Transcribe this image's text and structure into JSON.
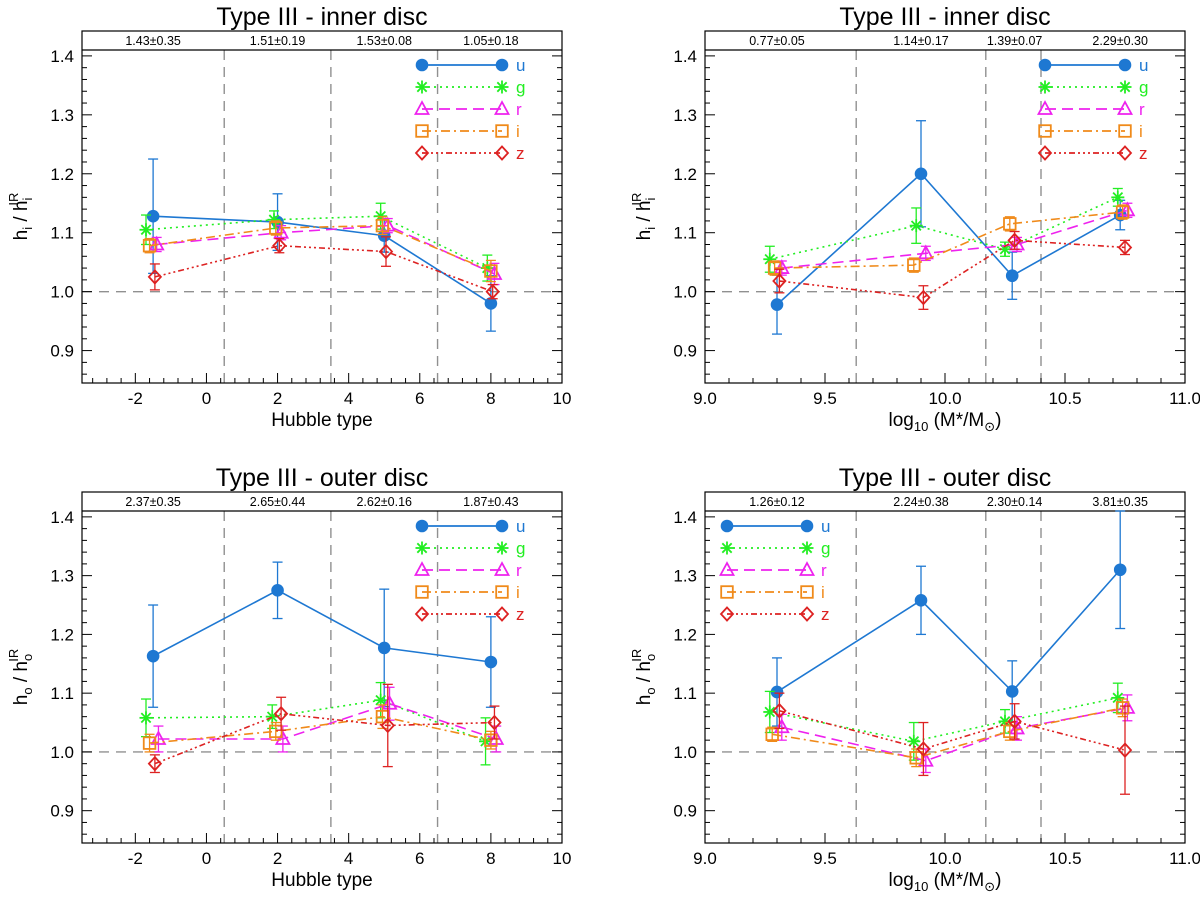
{
  "figure": {
    "description_free": true
  },
  "bands": [
    "u",
    "g",
    "r",
    "i",
    "z"
  ],
  "colors": {
    "u": "#1e78d2",
    "g": "#22ee22",
    "r": "#ee22ee",
    "i": "#f08a1a",
    "z": "#dd2222",
    "axis": "#000000",
    "refline": "#909090"
  },
  "chart_data": [
    {
      "type": "line",
      "title": "Type III - inner disc",
      "xlabel": "Hubble type",
      "ylabel": "h_i / h_i^IR",
      "ylabel_main": "h",
      "ylabel_sub": "i",
      "ylabel_slash": " / h",
      "ylabel_sub2": "i",
      "ylabel_sup": "IR",
      "xlim": [
        -3.5,
        10
      ],
      "ylim": [
        0.845,
        1.41
      ],
      "xticks": [
        -2,
        0,
        2,
        4,
        6,
        8,
        10
      ],
      "xtick_labels": [
        "-2",
        "0",
        "2",
        "4",
        "6",
        "8",
        "10"
      ],
      "yticks": [
        0.9,
        1.0,
        1.1,
        1.2,
        1.3,
        1.4
      ],
      "ytick_labels": [
        "0.9",
        "1.0",
        "1.1",
        "1.2",
        "1.3",
        "1.4"
      ],
      "vlines": [
        0.5,
        3.5,
        6.5
      ],
      "hline": 1.0,
      "top_labels": [
        {
          "x": -1.5,
          "text": "1.43±0.35"
        },
        {
          "x": 2.0,
          "text": "1.51±0.19"
        },
        {
          "x": 5.0,
          "text": "1.53±0.08"
        },
        {
          "x": 8.0,
          "text": "1.05±0.18"
        }
      ],
      "legend_position": "top-right",
      "series": [
        {
          "name": "u",
          "x": [
            -1.5,
            2.0,
            5.0,
            8.0
          ],
          "y": [
            1.128,
            1.118,
            1.095,
            0.98
          ],
          "err": [
            0.097,
            0.048,
            0.028,
            0.047
          ]
        },
        {
          "name": "g",
          "x": [
            -1.7,
            1.9,
            4.9,
            7.9
          ],
          "y": [
            1.105,
            1.122,
            1.128,
            1.04
          ],
          "err": [
            0.025,
            0.015,
            0.022,
            0.022
          ]
        },
        {
          "name": "r",
          "x": [
            -1.4,
            2.1,
            5.1,
            8.1
          ],
          "y": [
            1.08,
            1.1,
            1.112,
            1.03
          ],
          "err": [
            0.012,
            0.012,
            0.012,
            0.018
          ]
        },
        {
          "name": "i",
          "x": [
            -1.6,
            1.95,
            4.95,
            8.0
          ],
          "y": [
            1.078,
            1.108,
            1.112,
            1.035
          ],
          "err": [
            0.012,
            0.012,
            0.015,
            0.018
          ]
        },
        {
          "name": "z",
          "x": [
            -1.45,
            2.05,
            5.05,
            8.05
          ],
          "y": [
            1.025,
            1.078,
            1.068,
            1.0
          ],
          "err": [
            0.022,
            0.012,
            0.025,
            0.012
          ]
        }
      ]
    },
    {
      "type": "line",
      "title": "Type III - inner disc",
      "xlabel": "log10 (M*/M⊙)",
      "xlabel_main": "log",
      "xlabel_sub": "10",
      "xlabel_rest": " (M*/M",
      "xlabel_sun": "⊙",
      "xlabel_end": ")",
      "ylabel": "h_i / h_i^IR",
      "ylabel_main": "h",
      "ylabel_sub": "i",
      "ylabel_slash": " / h",
      "ylabel_sub2": "i",
      "ylabel_sup": "IR",
      "xlim": [
        9.0,
        11.0
      ],
      "ylim": [
        0.845,
        1.41
      ],
      "xticks": [
        9.0,
        9.5,
        10.0,
        10.5,
        11.0
      ],
      "xtick_labels": [
        "9.0",
        "9.5",
        "10.0",
        "10.5",
        "11.0"
      ],
      "yticks": [
        0.9,
        1.0,
        1.1,
        1.2,
        1.3,
        1.4
      ],
      "ytick_labels": [
        "0.9",
        "1.0",
        "1.1",
        "1.2",
        "1.3",
        "1.4"
      ],
      "vlines": [
        9.63,
        10.17,
        10.4
      ],
      "hline": 1.0,
      "top_labels": [
        {
          "x": 9.3,
          "text": "0.77±0.05"
        },
        {
          "x": 9.9,
          "text": "1.14±0.17"
        },
        {
          "x": 10.29,
          "text": "1.39±0.07"
        },
        {
          "x": 10.73,
          "text": "2.29±0.30"
        }
      ],
      "legend_position": "top-right",
      "series": [
        {
          "name": "u",
          "x": [
            9.3,
            9.9,
            10.28,
            10.73
          ],
          "y": [
            0.978,
            1.2,
            1.027,
            1.13
          ],
          "err": [
            0.05,
            0.09,
            0.04,
            0.025
          ]
        },
        {
          "name": "g",
          "x": [
            9.27,
            9.88,
            10.25,
            10.72
          ],
          "y": [
            1.055,
            1.112,
            1.072,
            1.16
          ],
          "err": [
            0.022,
            0.03,
            0.012,
            0.015
          ]
        },
        {
          "name": "r",
          "x": [
            9.32,
            9.92,
            10.3,
            10.76
          ],
          "y": [
            1.04,
            1.065,
            1.08,
            1.138
          ],
          "err": [
            0.012,
            0.012,
            0.012,
            0.012
          ]
        },
        {
          "name": "i",
          "x": [
            9.29,
            9.87,
            10.27,
            10.74
          ],
          "y": [
            1.04,
            1.045,
            1.115,
            1.135
          ],
          "err": [
            0.012,
            0.012,
            0.012,
            0.012
          ]
        },
        {
          "name": "z",
          "x": [
            9.31,
            9.91,
            10.29,
            10.75
          ],
          "y": [
            1.018,
            0.99,
            1.087,
            1.075
          ],
          "err": [
            0.02,
            0.02,
            0.015,
            0.012
          ]
        }
      ]
    },
    {
      "type": "line",
      "title": "Type III - outer disc",
      "xlabel": "Hubble type",
      "ylabel": "h_o / h_o^IR",
      "ylabel_main": "h",
      "ylabel_sub": "o",
      "ylabel_slash": " / h",
      "ylabel_sub2": "o",
      "ylabel_sup": "IR",
      "xlim": [
        -3.5,
        10
      ],
      "ylim": [
        0.845,
        1.41
      ],
      "xticks": [
        -2,
        0,
        2,
        4,
        6,
        8,
        10
      ],
      "xtick_labels": [
        "-2",
        "0",
        "2",
        "4",
        "6",
        "8",
        "10"
      ],
      "yticks": [
        0.9,
        1.0,
        1.1,
        1.2,
        1.3,
        1.4
      ],
      "ytick_labels": [
        "0.9",
        "1.0",
        "1.1",
        "1.2",
        "1.3",
        "1.4"
      ],
      "vlines": [
        0.5,
        3.5,
        6.5
      ],
      "hline": 1.0,
      "top_labels": [
        {
          "x": -1.5,
          "text": "2.37±0.35"
        },
        {
          "x": 2.0,
          "text": "2.65±0.44"
        },
        {
          "x": 5.0,
          "text": "2.62±0.16"
        },
        {
          "x": 8.0,
          "text": "1.87±0.43"
        }
      ],
      "legend_position": "top-right",
      "series": [
        {
          "name": "u",
          "x": [
            -1.5,
            2.0,
            5.0,
            8.0
          ],
          "y": [
            1.163,
            1.275,
            1.177,
            1.153
          ],
          "err": [
            0.087,
            0.048,
            0.1,
            0.077
          ]
        },
        {
          "name": "g",
          "x": [
            -1.7,
            1.85,
            4.9,
            7.85
          ],
          "y": [
            1.058,
            1.06,
            1.088,
            1.018
          ],
          "err": [
            0.032,
            0.02,
            0.03,
            0.04
          ]
        },
        {
          "name": "r",
          "x": [
            -1.35,
            2.15,
            5.15,
            8.15
          ],
          "y": [
            1.022,
            1.022,
            1.082,
            1.022
          ],
          "err": [
            0.022,
            0.022,
            0.028,
            0.022
          ]
        },
        {
          "name": "i",
          "x": [
            -1.6,
            1.95,
            4.95,
            8.0
          ],
          "y": [
            1.015,
            1.035,
            1.06,
            1.02
          ],
          "err": [
            0.015,
            0.015,
            0.02,
            0.015
          ]
        },
        {
          "name": "z",
          "x": [
            -1.45,
            2.1,
            5.1,
            8.1
          ],
          "y": [
            0.98,
            1.065,
            1.045,
            1.05
          ],
          "err": [
            0.015,
            0.028,
            0.07,
            0.028
          ]
        }
      ]
    },
    {
      "type": "line",
      "title": "Type III - outer disc",
      "xlabel": "log10 (M*/M⊙)",
      "xlabel_main": "log",
      "xlabel_sub": "10",
      "xlabel_rest": " (M*/M",
      "xlabel_sun": "⊙",
      "xlabel_end": ")",
      "ylabel": "h_o / h_o^IR",
      "ylabel_main": "h",
      "ylabel_sub": "o",
      "ylabel_slash": " / h",
      "ylabel_sub2": "o",
      "ylabel_sup": "IR",
      "xlim": [
        9.0,
        11.0
      ],
      "ylim": [
        0.845,
        1.41
      ],
      "xticks": [
        9.0,
        9.5,
        10.0,
        10.5,
        11.0
      ],
      "xtick_labels": [
        "9.0",
        "9.5",
        "10.0",
        "10.5",
        "11.0"
      ],
      "yticks": [
        0.9,
        1.0,
        1.1,
        1.2,
        1.3,
        1.4
      ],
      "ytick_labels": [
        "0.9",
        "1.0",
        "1.1",
        "1.2",
        "1.3",
        "1.4"
      ],
      "vlines": [
        9.63,
        10.17,
        10.4
      ],
      "hline": 1.0,
      "top_labels": [
        {
          "x": 9.3,
          "text": "1.26±0.12"
        },
        {
          "x": 9.9,
          "text": "2.24±0.38"
        },
        {
          "x": 10.29,
          "text": "2.30±0.14"
        },
        {
          "x": 10.73,
          "text": "3.81±0.35"
        }
      ],
      "legend_position": "top-left",
      "series": [
        {
          "name": "u",
          "x": [
            9.3,
            9.9,
            10.28,
            10.73
          ],
          "y": [
            1.102,
            1.258,
            1.103,
            1.31
          ],
          "err": [
            0.058,
            0.058,
            0.052,
            0.1
          ]
        },
        {
          "name": "g",
          "x": [
            9.27,
            9.87,
            10.25,
            10.72
          ],
          "y": [
            1.068,
            1.018,
            1.052,
            1.092
          ],
          "err": [
            0.035,
            0.032,
            0.02,
            0.025
          ]
        },
        {
          "name": "r",
          "x": [
            9.32,
            9.92,
            10.3,
            10.76
          ],
          "y": [
            1.042,
            0.985,
            1.04,
            1.075
          ],
          "err": [
            0.022,
            0.02,
            0.02,
            0.022
          ]
        },
        {
          "name": "i",
          "x": [
            9.28,
            9.88,
            10.27,
            10.74
          ],
          "y": [
            1.03,
            0.99,
            1.035,
            1.075
          ],
          "err": [
            0.012,
            0.015,
            0.015,
            0.015
          ]
        },
        {
          "name": "z",
          "x": [
            9.31,
            9.91,
            10.29,
            10.75
          ],
          "y": [
            1.07,
            1.005,
            1.052,
            1.003
          ],
          "err": [
            0.03,
            0.045,
            0.03,
            0.075
          ]
        }
      ]
    }
  ]
}
